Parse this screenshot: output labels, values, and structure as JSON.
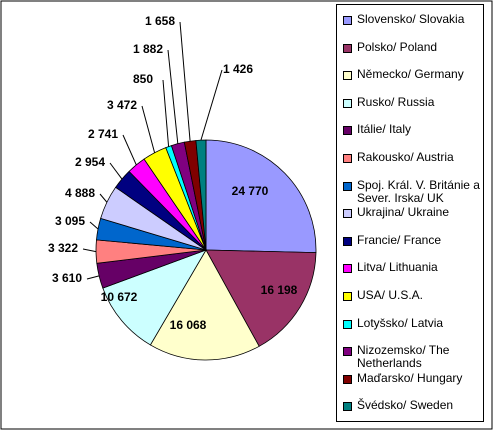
{
  "chart_data": {
    "type": "pie",
    "categories": [
      "Slovensko/ Slovakia",
      "Polsko/ Poland",
      "Německo/ Germany",
      "Rusko/ Russia",
      "Itálie/ Italy",
      "Rakousko/ Austria",
      "Spoj. Král. V. Británie a Sever. Irska/ UK",
      "Ukrajina/ Ukraine",
      "Francie/ France",
      "Litva/ Lithuania",
      "USA/ U.S.A.",
      "Lotyšsko/ Latvia",
      "Nizozemsko/ The Netherlands",
      "Maďarsko/ Hungary",
      "Švédsko/ Sweden"
    ],
    "values": [
      24770,
      16198,
      16068,
      10672,
      3610,
      3322,
      3095,
      4888,
      2954,
      2741,
      3472,
      850,
      1882,
      1658,
      1426
    ],
    "value_labels": [
      "24 770",
      "16 198",
      "16 068",
      "10 672",
      "3 610",
      "3 322",
      "3 095",
      "4 888",
      "2 954",
      "2 741",
      "3 472",
      "850",
      "1 882",
      "1 658",
      "1 426"
    ],
    "colors": [
      "#9999ff",
      "#993366",
      "#ffffcc",
      "#ccffff",
      "#660066",
      "#ff8080",
      "#0066cc",
      "#ccccff",
      "#000080",
      "#ff00ff",
      "#ffff00",
      "#00ffff",
      "#800080",
      "#800000",
      "#008080"
    ],
    "legend_position": "right"
  }
}
